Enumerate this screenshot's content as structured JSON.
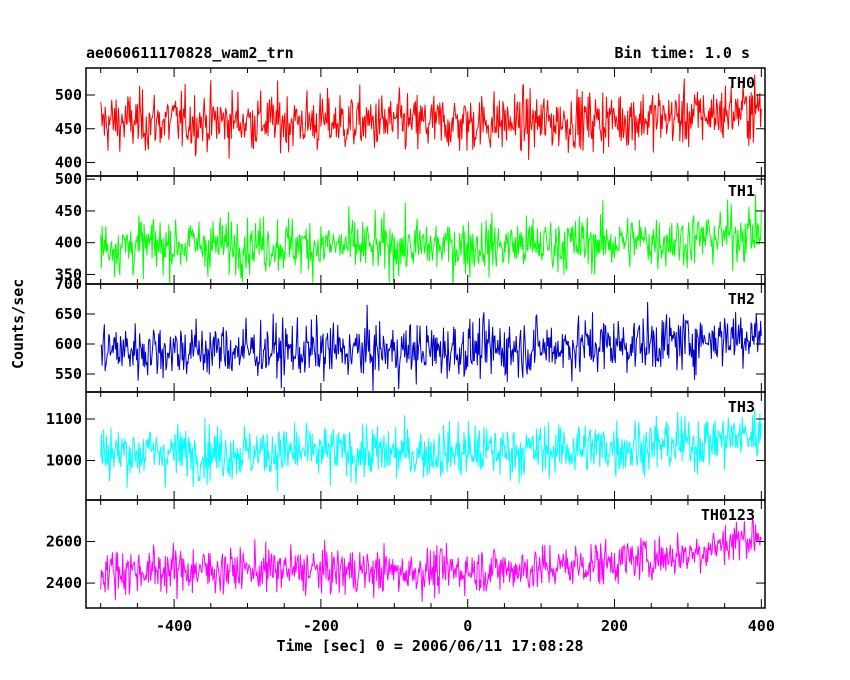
{
  "header": {
    "title_left": "ae060611170828_wam2_trn",
    "title_right": "Bin time: 1.0 s"
  },
  "chart_data": {
    "type": "line",
    "xlabel": "Time [sec] 0 = 2006/06/11 17:08:28",
    "ylabel": "Counts/sec",
    "xlim": [
      -520,
      405
    ],
    "x_range_data": [
      -500,
      400
    ],
    "bin_time_s": 1.0,
    "xticks": [
      -400,
      -200,
      0,
      200,
      400
    ],
    "panels": [
      {
        "name": "TH0",
        "color": "#ff0000",
        "ylim": [
          380,
          540
        ],
        "yticks": [
          400,
          450,
          500
        ],
        "trend": {
          "x": [
            -500,
            -300,
            -100,
            100,
            300,
            400
          ],
          "y": [
            460,
            462,
            458,
            460,
            468,
            480
          ]
        },
        "scatter": 22
      },
      {
        "name": "TH1",
        "color": "#00ff00",
        "ylim": [
          335,
          505
        ],
        "yticks": [
          350,
          400,
          450,
          500
        ],
        "trend": {
          "x": [
            -500,
            -300,
            -100,
            100,
            300,
            400
          ],
          "y": [
            395,
            398,
            393,
            397,
            405,
            418
          ]
        },
        "scatter": 22
      },
      {
        "name": "TH2",
        "color": "#0000cc",
        "ylim": [
          520,
          700
        ],
        "yticks": [
          550,
          600,
          650,
          700
        ],
        "trend": {
          "x": [
            -500,
            -300,
            -100,
            100,
            300,
            400
          ],
          "y": [
            590,
            590,
            588,
            594,
            605,
            618
          ]
        },
        "scatter": 24
      },
      {
        "name": "TH3",
        "color": "#00ffff",
        "ylim": [
          905,
          1165
        ],
        "yticks": [
          1000,
          1100
        ],
        "trend": {
          "x": [
            -500,
            -300,
            -100,
            100,
            300,
            400
          ],
          "y": [
            1020,
            1020,
            1018,
            1025,
            1040,
            1065
          ]
        },
        "scatter": 33
      },
      {
        "name": "TH0123",
        "color": "#ff00ff",
        "ylim": [
          2280,
          2800
        ],
        "yticks": [
          2400,
          2600
        ],
        "trend": {
          "x": [
            -500,
            -300,
            -100,
            100,
            300,
            400
          ],
          "y": [
            2460,
            2465,
            2455,
            2470,
            2540,
            2640
          ]
        },
        "scatter": 55
      }
    ]
  }
}
